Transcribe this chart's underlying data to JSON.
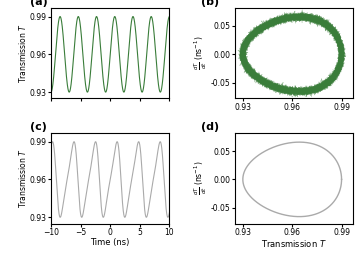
{
  "title_a": "(a)",
  "title_b": "(b)",
  "title_c": "(c)",
  "title_d": "(d)",
  "t_min": -10,
  "t_max": 10,
  "T_min": 0.93,
  "T_max": 0.99,
  "T_mid": 0.96,
  "T_amp": 0.03,
  "color_green": "#3a7d3a",
  "color_gray": "#aaaaaa",
  "xlabel_c": "Time (ns)",
  "ylabel_ac": "Transmission $T$",
  "ylabel_bd": "$\\frac{dT}{dt}$ (ns$^{-1}$)",
  "xlabel_bd": "Transmission $T$",
  "xticks_ac": [
    -10,
    -5,
    0,
    5,
    10
  ],
  "yticks_ac": [
    0.93,
    0.96,
    0.99
  ],
  "xticks_bd": [
    0.93,
    0.96,
    0.99
  ],
  "yticks_bd": [
    -0.05,
    0.0,
    0.05
  ],
  "n_cycles_a": 6.5,
  "n_cycles_c": 5.5,
  "period_a": 3.0,
  "period_c": 3.6
}
